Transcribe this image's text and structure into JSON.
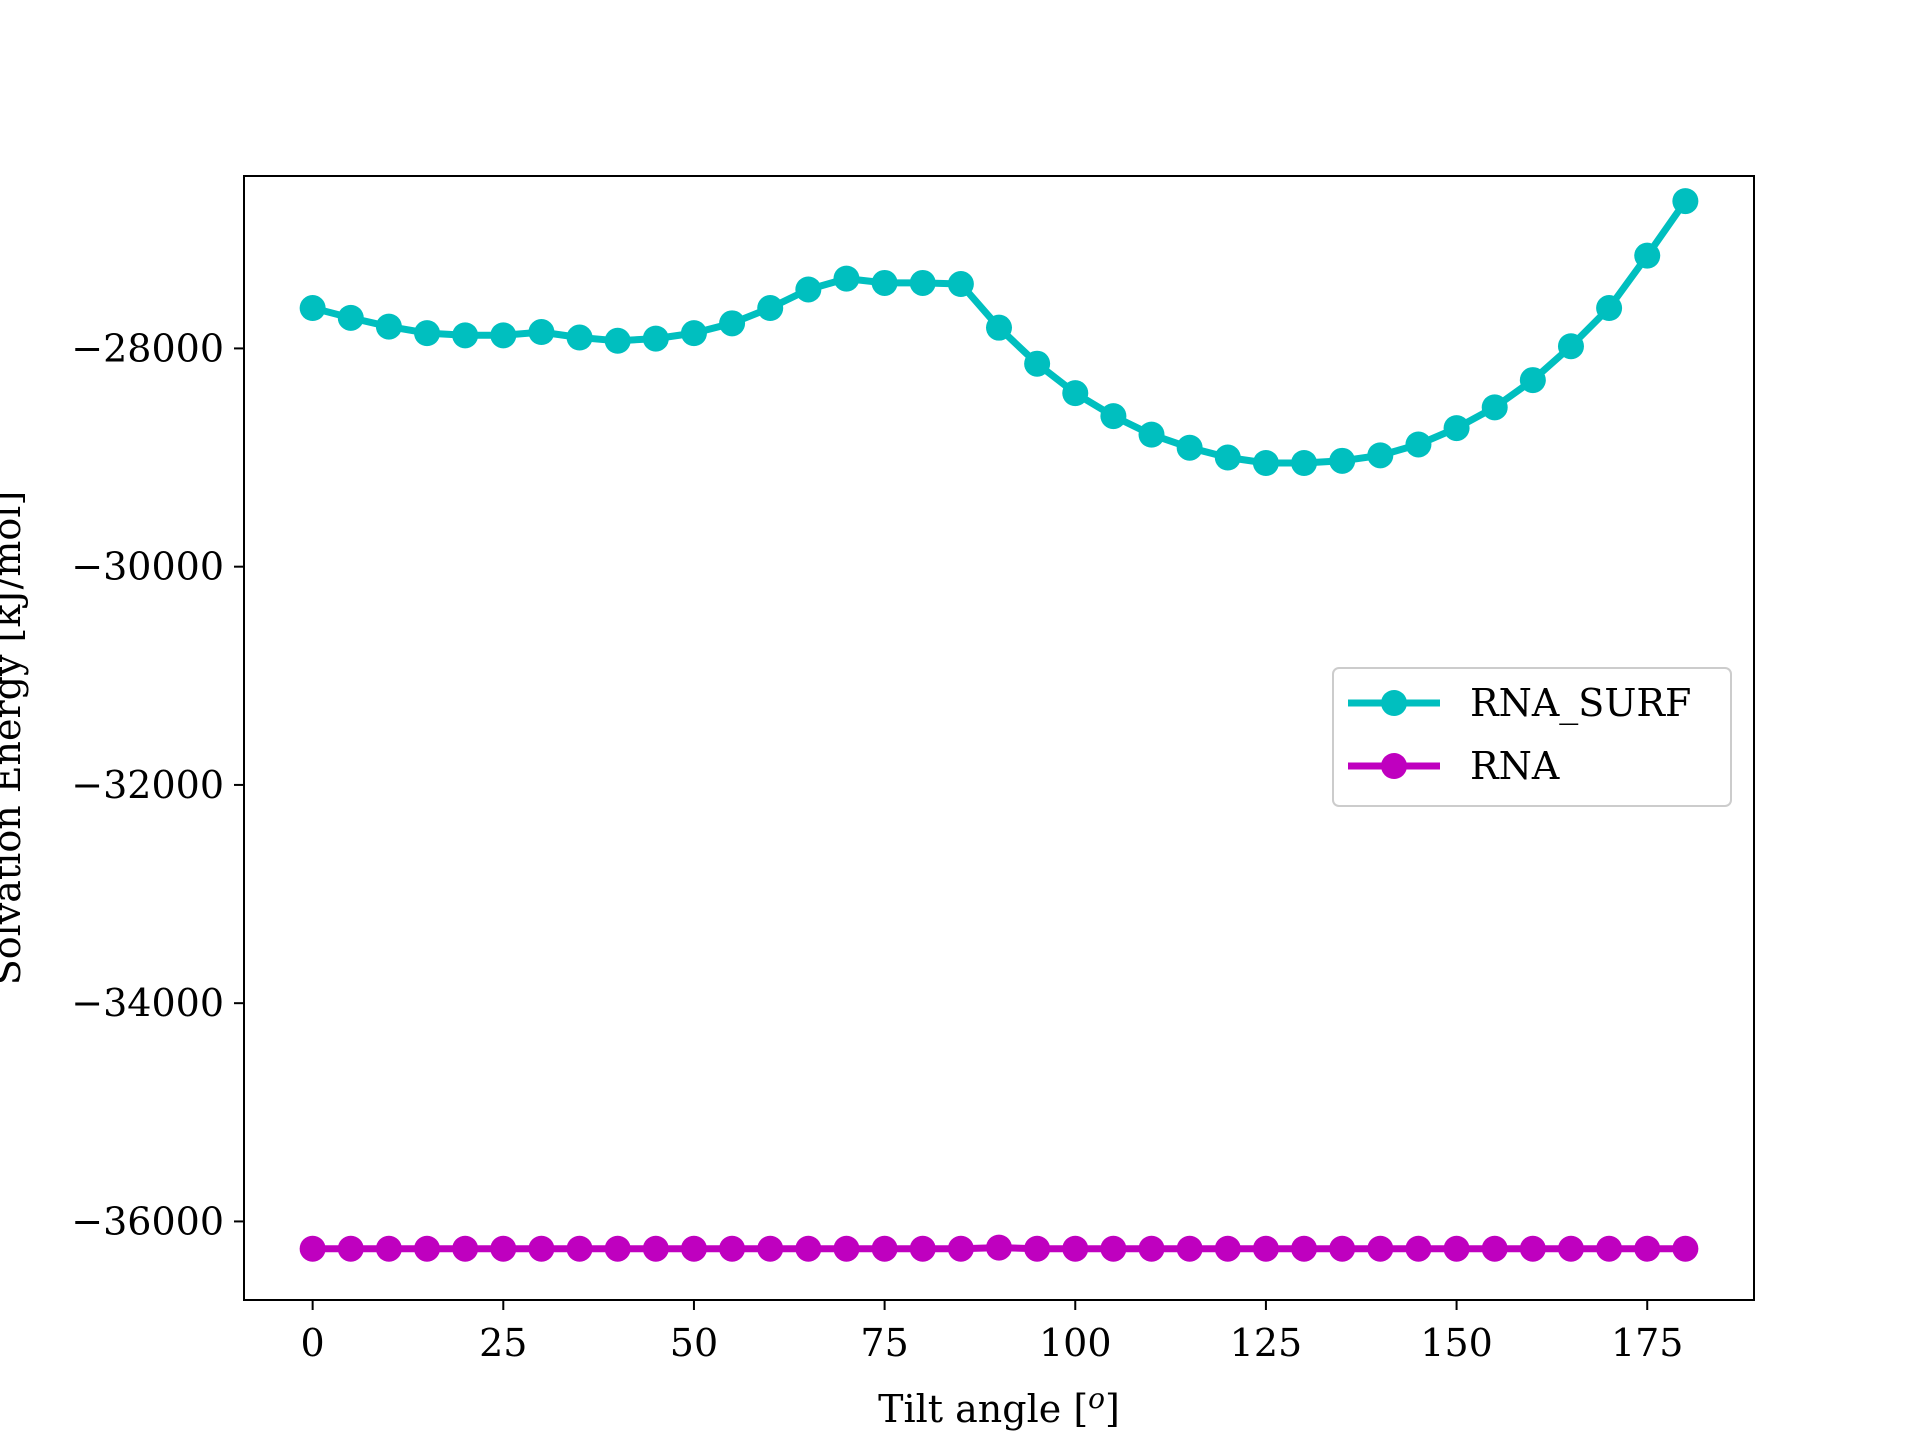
{
  "chart_data": {
    "type": "line",
    "title": "",
    "xlabel": "Tilt angle [",
    "xlabel_sup": "o",
    "xlabel_end": "]",
    "ylabel": "Solvation Energy [kJ/mol]",
    "xlim": [
      -9,
      189
    ],
    "ylim": [
      -36720,
      -26420
    ],
    "xticks": [
      0,
      25,
      50,
      75,
      100,
      125,
      150,
      175
    ],
    "yticks": [
      -36000,
      -34000,
      -32000,
      -30000,
      -28000
    ],
    "ytick_labels": [
      "−36000",
      "−34000",
      "−32000",
      "−30000",
      "−28000"
    ],
    "x": [
      0,
      5,
      10,
      15,
      20,
      25,
      30,
      35,
      40,
      45,
      50,
      55,
      60,
      65,
      70,
      75,
      80,
      85,
      90,
      95,
      100,
      105,
      110,
      115,
      120,
      125,
      130,
      135,
      140,
      145,
      150,
      155,
      160,
      165,
      170,
      175,
      180
    ],
    "series": [
      {
        "name": "RNA_SURF",
        "color": "#00bfbf",
        "values": [
          -27630,
          -27720,
          -27800,
          -27860,
          -27880,
          -27880,
          -27850,
          -27900,
          -27930,
          -27910,
          -27860,
          -27770,
          -27630,
          -27460,
          -27360,
          -27400,
          -27400,
          -27410,
          -27810,
          -28140,
          -28410,
          -28620,
          -28790,
          -28910,
          -29000,
          -29050,
          -29050,
          -29030,
          -28980,
          -28880,
          -28730,
          -28540,
          -28290,
          -27980,
          -27630,
          -27150,
          -26650
        ]
      },
      {
        "name": "RNA",
        "color": "#bf00bf",
        "values": [
          -36250,
          -36250,
          -36250,
          -36250,
          -36250,
          -36250,
          -36250,
          -36250,
          -36250,
          -36250,
          -36250,
          -36250,
          -36250,
          -36250,
          -36250,
          -36250,
          -36250,
          -36250,
          -36240,
          -36250,
          -36250,
          -36250,
          -36250,
          -36250,
          -36250,
          -36250,
          -36250,
          -36250,
          -36250,
          -36250,
          -36250,
          -36250,
          -36250,
          -36250,
          -36250,
          -36250,
          -36250
        ]
      }
    ],
    "legend_position": "center-right",
    "grid": false
  }
}
